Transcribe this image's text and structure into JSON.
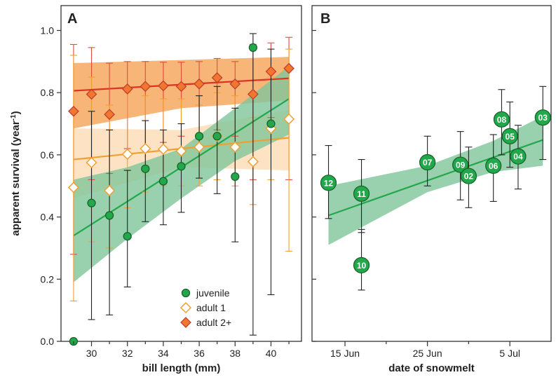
{
  "colors": {
    "juvenile": "#22a84a",
    "juvenile_dark": "#145f2a",
    "juvenile_band": "#7fc69a",
    "adult1": "#f0a030",
    "adult1_band": "#fcd9b0",
    "adult2": "#f0772d",
    "adult2_line": "#dd3322",
    "adult2_band": "#f7a860",
    "adult2_err": "#e04b3c"
  },
  "chart_data": [
    {
      "type": "scatter",
      "panel": "A",
      "xlabel": "bill length (mm)",
      "ylabel": "apparent survival (year",
      "ylabel_sup": "-1",
      "ylabel_end": ")",
      "xlim": [
        28.3,
        41.7
      ],
      "ylim": [
        0,
        1.08
      ],
      "xticks": [
        30,
        32,
        34,
        36,
        38,
        40
      ],
      "yticks": [
        0.0,
        0.2,
        0.4,
        0.6,
        0.8,
        1.0
      ],
      "ytick_labels": [
        "0.0",
        "0.2",
        "0.4",
        "0.6",
        "0.8",
        "1.0"
      ],
      "legend_position": "bottom-right",
      "series": [
        {
          "key": "adult2",
          "name": "adult 2+",
          "marker": "diamond-filled",
          "x": [
            29,
            30,
            31,
            32,
            33,
            34,
            35,
            36,
            37,
            38,
            39,
            40,
            41
          ],
          "y": [
            0.74,
            0.795,
            0.73,
            0.812,
            0.82,
            0.822,
            0.82,
            0.828,
            0.848,
            0.828,
            0.795,
            0.868,
            0.878
          ],
          "lower": [
            0.28,
            0.52,
            0.54,
            0.62,
            0.62,
            0.64,
            0.66,
            0.66,
            0.68,
            0.66,
            0.52,
            0.72,
            0.52
          ],
          "upper": [
            0.955,
            0.945,
            0.895,
            0.9,
            0.9,
            0.898,
            0.898,
            0.9,
            0.91,
            0.9,
            0.955,
            0.96,
            0.978
          ],
          "fit": {
            "x": [
              29,
              41
            ],
            "y": [
              0.806,
              0.846
            ]
          },
          "band": {
            "x": [
              29,
              35,
              41
            ],
            "lower": [
              0.685,
              0.75,
              0.775
            ],
            "upper": [
              0.895,
              0.905,
              0.915
            ]
          }
        },
        {
          "key": "adult1",
          "name": "adult 1",
          "marker": "diamond-open",
          "x": [
            29,
            30,
            31,
            32,
            33,
            34,
            35,
            36,
            37,
            38,
            39,
            40,
            41
          ],
          "y": [
            0.495,
            0.575,
            0.485,
            0.602,
            0.62,
            0.618,
            0.612,
            0.625,
            0.66,
            0.625,
            0.578,
            0.685,
            0.715
          ],
          "lower": [
            0.13,
            0.32,
            0.3,
            0.43,
            0.48,
            0.5,
            0.5,
            0.5,
            0.52,
            0.5,
            0.44,
            0.52,
            0.29
          ],
          "upper": [
            0.92,
            0.85,
            0.76,
            0.8,
            0.79,
            0.78,
            0.78,
            0.76,
            0.8,
            0.79,
            0.72,
            0.85,
            0.94
          ],
          "fit": {
            "x": [
              29,
              41
            ],
            "y": [
              0.585,
              0.655
            ]
          },
          "band": {
            "x": [
              29,
              35,
              41
            ],
            "lower": [
              0.46,
              0.56,
              0.55
            ],
            "upper": [
              0.685,
              0.68,
              0.745
            ]
          }
        },
        {
          "key": "juvenile",
          "name": "juvenile",
          "marker": "circle",
          "x": [
            29,
            30,
            31,
            32,
            33,
            34,
            35,
            36,
            37,
            38,
            39,
            40
          ],
          "y": [
            0.0,
            0.445,
            0.405,
            0.338,
            0.555,
            0.515,
            0.563,
            0.66,
            0.66,
            0.53,
            0.945,
            0.7
          ],
          "lower": [
            null,
            0.07,
            0.085,
            0.175,
            0.385,
            0.375,
            0.415,
            0.525,
            0.475,
            0.32,
            0.02,
            0.15
          ],
          "upper": [
            null,
            0.74,
            0.68,
            0.55,
            0.71,
            0.68,
            0.7,
            0.79,
            0.82,
            0.75,
            0.99,
            0.94
          ],
          "fit": {
            "x": [
              29,
              41
            ],
            "y": [
              0.34,
              0.78
            ]
          },
          "band": {
            "x": [
              29,
              32,
              35,
              38,
              41
            ],
            "lower": [
              0.19,
              0.33,
              0.46,
              0.58,
              0.665
            ],
            "upper": [
              0.52,
              0.56,
              0.62,
              0.75,
              0.885
            ]
          }
        }
      ]
    },
    {
      "type": "scatter",
      "panel": "B",
      "xlabel": "date of snowmelt",
      "xtick_labels": [
        "15 Jun",
        "25 Jun",
        "5 Jul"
      ],
      "xtick_dates": [
        "06-15",
        "06-25",
        "07-05"
      ],
      "xlim_dates": [
        "06-11",
        "07-10"
      ],
      "ylim": [
        0,
        1.08
      ],
      "yticks": [
        0.0,
        0.2,
        0.4,
        0.6,
        0.8,
        1.0
      ],
      "points": [
        {
          "label": "12",
          "date": "06-13",
          "y": 0.51,
          "lower": 0.395,
          "upper": 0.63
        },
        {
          "label": "11",
          "date": "06-17",
          "y": 0.475,
          "lower": 0.35,
          "upper": 0.585
        },
        {
          "label": "10",
          "date": "06-17",
          "y": 0.245,
          "lower": 0.165,
          "upper": 0.36
        },
        {
          "label": "07",
          "date": "06-25",
          "y": 0.576,
          "lower": 0.5,
          "upper": 0.66
        },
        {
          "label": "09",
          "date": "06-29",
          "y": 0.568,
          "lower": 0.455,
          "upper": 0.675
        },
        {
          "label": "02",
          "date": "06-30",
          "y": 0.532,
          "lower": 0.43,
          "upper": 0.625
        },
        {
          "label": "06",
          "date": "07-03",
          "y": 0.565,
          "lower": 0.45,
          "upper": 0.665
        },
        {
          "label": "08",
          "date": "07-04",
          "y": 0.714,
          "lower": 0.6,
          "upper": 0.81
        },
        {
          "label": "05",
          "date": "07-05",
          "y": 0.66,
          "lower": 0.56,
          "upper": 0.77
        },
        {
          "label": "04",
          "date": "07-06",
          "y": 0.595,
          "lower": 0.49,
          "upper": 0.695
        },
        {
          "label": "03",
          "date": "07-09",
          "y": 0.72,
          "lower": 0.585,
          "upper": 0.82
        }
      ],
      "fit": {
        "dates": [
          "06-13",
          "07-09"
        ],
        "y": [
          0.405,
          0.648
        ]
      },
      "band": {
        "dates": [
          "06-13",
          "06-25",
          "07-03",
          "07-09"
        ],
        "lower": [
          0.31,
          0.48,
          0.545,
          0.565
        ],
        "upper": [
          0.5,
          0.565,
          0.645,
          0.725
        ]
      }
    }
  ]
}
